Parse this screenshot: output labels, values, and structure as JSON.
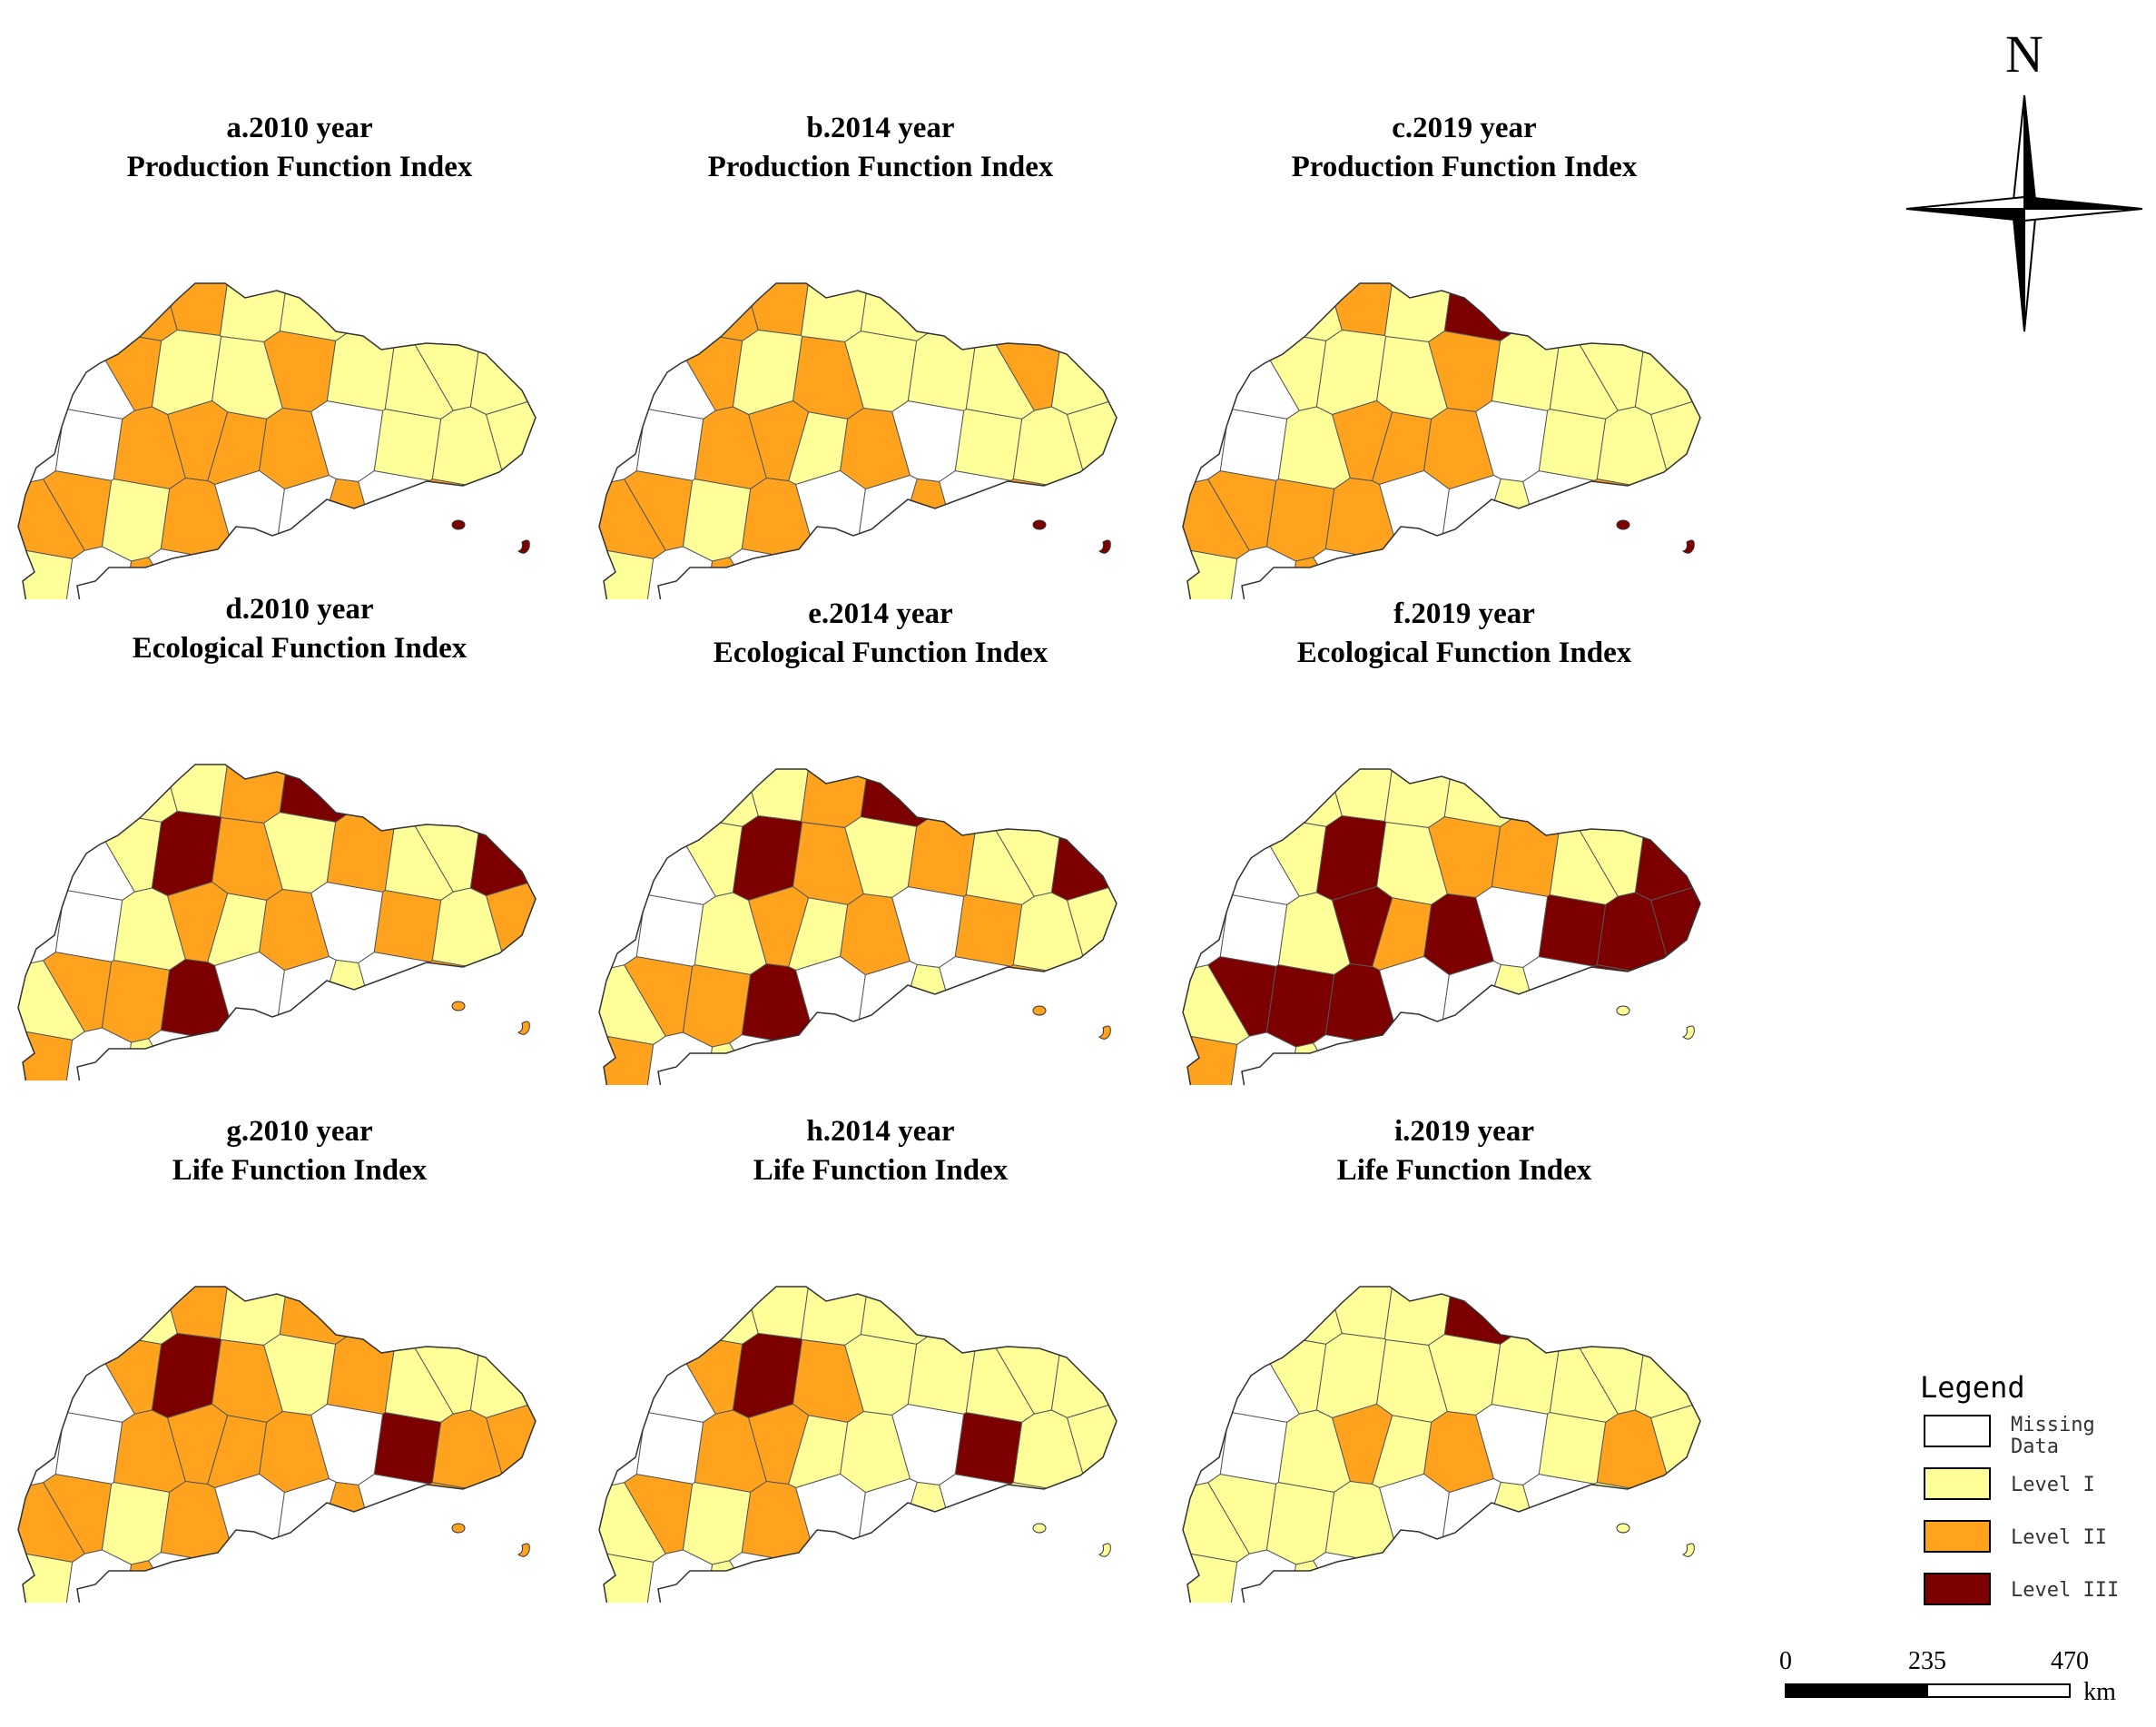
{
  "panels": [
    {
      "id": "a",
      "line1": "a.2010 year",
      "line2": "Production Function Index",
      "colors": [
        "Y",
        "Y",
        "O",
        "O",
        "Y",
        "Y",
        "O",
        "Y",
        "O",
        "Y",
        "W",
        "W",
        "O",
        "Y",
        "Y",
        "O",
        "Y",
        "Y",
        "Y",
        "Y",
        "W",
        "W",
        "O",
        "O",
        "O",
        "O",
        "W",
        "Y",
        "Y",
        "Y",
        "O",
        "O",
        "Y",
        "O",
        "W",
        "W",
        "O",
        "W",
        "O",
        "Y",
        "Y",
        "W",
        "O",
        "W",
        "R",
        "O",
        "W",
        "W",
        "R",
        "R"
      ]
    },
    {
      "id": "b",
      "line1": "b.2014 year",
      "line2": "Production Function Index",
      "colors": [
        "Y",
        "O",
        "O",
        "O",
        "Y",
        "Y",
        "Y",
        "O",
        "O",
        "Y",
        "W",
        "W",
        "O",
        "Y",
        "O",
        "Y",
        "Y",
        "Y",
        "O",
        "Y",
        "W",
        "W",
        "O",
        "O",
        "Y",
        "O",
        "W",
        "Y",
        "Y",
        "Y",
        "O",
        "O",
        "Y",
        "O",
        "W",
        "W",
        "O",
        "W",
        "O",
        "Y",
        "Y",
        "W",
        "O",
        "W",
        "R",
        "O",
        "W",
        "W",
        "R",
        "R"
      ]
    },
    {
      "id": "c",
      "line1": "c.2019 year",
      "line2": "Production Function Index",
      "colors": [
        "Y",
        "Y",
        "Y",
        "O",
        "Y",
        "R",
        "Y",
        "Y",
        "Y",
        "Y",
        "W",
        "W",
        "Y",
        "Y",
        "Y",
        "O",
        "Y",
        "Y",
        "Y",
        "Y",
        "W",
        "W",
        "Y",
        "O",
        "O",
        "O",
        "W",
        "Y",
        "Y",
        "Y",
        "O",
        "O",
        "O",
        "O",
        "W",
        "W",
        "Y",
        "W",
        "O",
        "Y",
        "Y",
        "W",
        "O",
        "W",
        "R",
        "O",
        "W",
        "W",
        "R",
        "R"
      ]
    },
    {
      "id": "d",
      "line1": "d.2010 year",
      "line2": "Ecological Function Index",
      "colors": [
        "Y",
        "Y",
        "Y",
        "Y",
        "O",
        "R",
        "Y",
        "Y",
        "Y",
        "Y",
        "W",
        "W",
        "Y",
        "R",
        "O",
        "Y",
        "O",
        "Y",
        "Y",
        "R",
        "W",
        "W",
        "Y",
        "O",
        "Y",
        "O",
        "W",
        "O",
        "Y",
        "O",
        "Y",
        "O",
        "O",
        "R",
        "W",
        "W",
        "Y",
        "W",
        "O",
        "Y",
        "O",
        "W",
        "Y",
        "W",
        "O",
        "O",
        "W",
        "W",
        "O",
        "O"
      ]
    },
    {
      "id": "e",
      "line1": "e.2014 year",
      "line2": "Ecological Function Index",
      "colors": [
        "Y",
        "Y",
        "Y",
        "Y",
        "O",
        "R",
        "Y",
        "Y",
        "Y",
        "Y",
        "W",
        "W",
        "Y",
        "R",
        "O",
        "Y",
        "O",
        "Y",
        "Y",
        "R",
        "W",
        "W",
        "Y",
        "O",
        "Y",
        "O",
        "W",
        "O",
        "Y",
        "Y",
        "Y",
        "O",
        "O",
        "R",
        "W",
        "W",
        "Y",
        "W",
        "O",
        "Y",
        "O",
        "W",
        "Y",
        "W",
        "O",
        "O",
        "W",
        "W",
        "O",
        "O"
      ]
    },
    {
      "id": "f",
      "line1": "f.2019 year",
      "line2": "Ecological Function Index",
      "colors": [
        "Y",
        "Y",
        "Y",
        "Y",
        "Y",
        "Y",
        "Y",
        "Y",
        "Y",
        "Y",
        "W",
        "W",
        "Y",
        "R",
        "Y",
        "O",
        "O",
        "Y",
        "Y",
        "R",
        "W",
        "W",
        "Y",
        "R",
        "O",
        "R",
        "W",
        "R",
        "R",
        "R",
        "Y",
        "R",
        "R",
        "R",
        "W",
        "W",
        "Y",
        "W",
        "R",
        "Y",
        "O",
        "W",
        "Y",
        "W",
        "O",
        "Y",
        "W",
        "W",
        "Y",
        "Y"
      ]
    },
    {
      "id": "g",
      "line1": "g.2010 year",
      "line2": "Life Function Index",
      "colors": [
        "Y",
        "O",
        "Y",
        "O",
        "Y",
        "O",
        "Y",
        "Y",
        "Y",
        "Y",
        "W",
        "W",
        "O",
        "R",
        "O",
        "Y",
        "O",
        "Y",
        "Y",
        "Y",
        "W",
        "W",
        "O",
        "O",
        "O",
        "O",
        "W",
        "R",
        "O",
        "O",
        "O",
        "O",
        "Y",
        "O",
        "W",
        "W",
        "O",
        "W",
        "O",
        "Y",
        "Y",
        "W",
        "O",
        "W",
        "O",
        "O",
        "W",
        "W",
        "O",
        "O"
      ]
    },
    {
      "id": "h",
      "line1": "h.2014 year",
      "line2": "Life Function Index",
      "colors": [
        "Y",
        "O",
        "Y",
        "Y",
        "Y",
        "Y",
        "Y",
        "Y",
        "Y",
        "Y",
        "W",
        "W",
        "O",
        "R",
        "O",
        "Y",
        "Y",
        "Y",
        "Y",
        "Y",
        "W",
        "W",
        "O",
        "O",
        "Y",
        "Y",
        "W",
        "R",
        "Y",
        "Y",
        "Y",
        "O",
        "Y",
        "O",
        "W",
        "W",
        "Y",
        "W",
        "Y",
        "Y",
        "Y",
        "W",
        "Y",
        "W",
        "Y",
        "Y",
        "W",
        "W",
        "Y",
        "Y"
      ]
    },
    {
      "id": "i",
      "line1": "i.2019 year",
      "line2": "Life Function Index",
      "colors": [
        "Y",
        "Y",
        "Y",
        "Y",
        "Y",
        "R",
        "Y",
        "Y",
        "Y",
        "Y",
        "W",
        "W",
        "Y",
        "Y",
        "Y",
        "Y",
        "Y",
        "Y",
        "Y",
        "Y",
        "W",
        "W",
        "Y",
        "O",
        "Y",
        "O",
        "W",
        "Y",
        "O",
        "Y",
        "Y",
        "Y",
        "Y",
        "Y",
        "W",
        "W",
        "Y",
        "W",
        "Y",
        "Y",
        "Y",
        "W",
        "Y",
        "W",
        "Y",
        "Y",
        "W",
        "W",
        "Y",
        "Y"
      ]
    }
  ],
  "palette": {
    "W": "#ffffff",
    "Y": "#ffff9a",
    "O": "#ffa31e",
    "R": "#7d0000"
  },
  "compass": {
    "label": "N"
  },
  "legend": {
    "title": "Legend",
    "items": [
      {
        "key": "W",
        "line1": "Missing",
        "line2": "Data",
        "color": "#ffffff"
      },
      {
        "key": "Y",
        "line1": "Level I",
        "line2": "",
        "color": "#ffff9a"
      },
      {
        "key": "O",
        "line1": "Level II",
        "line2": "",
        "color": "#ffa31e"
      },
      {
        "key": "R",
        "line1": "Level III",
        "line2": "",
        "color": "#7d0000"
      }
    ]
  },
  "scale": {
    "ticks": [
      "0",
      "235",
      "470"
    ],
    "unit": "km"
  }
}
